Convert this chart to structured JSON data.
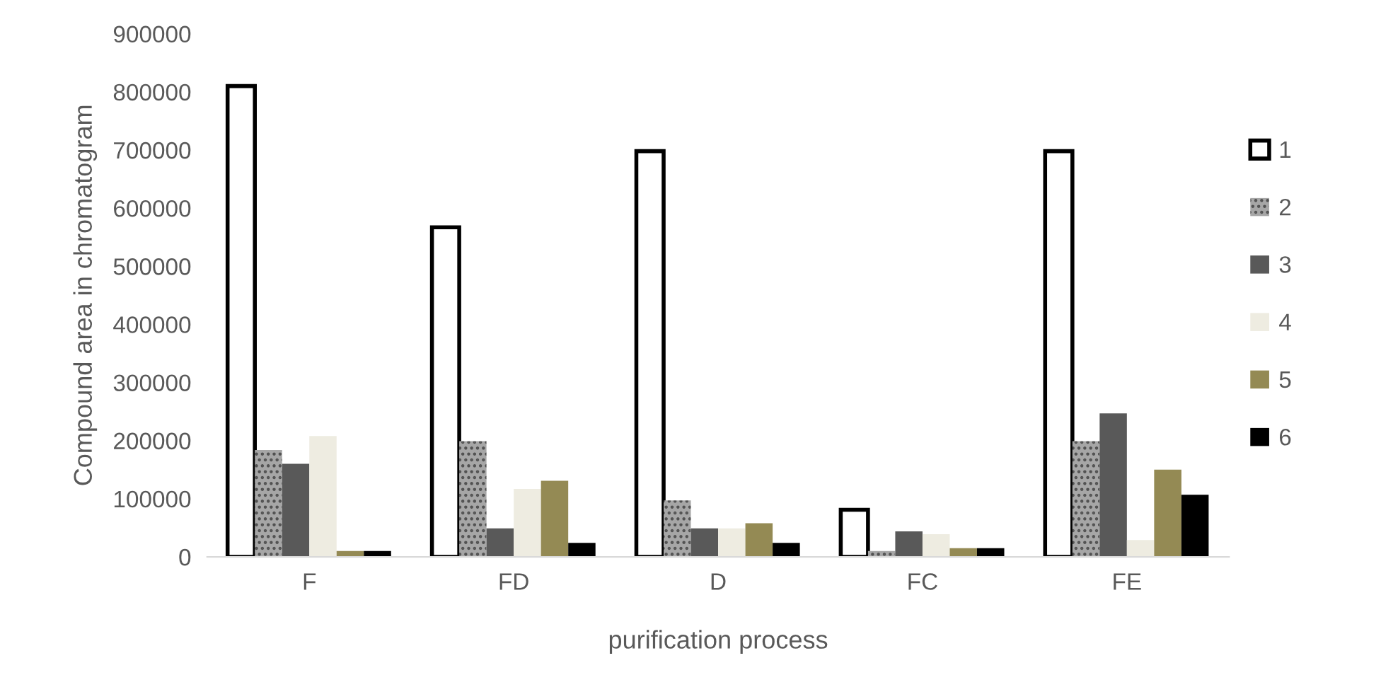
{
  "chart_data": {
    "type": "bar",
    "xlabel": "purification process",
    "ylabel": "Compound area in chromatogram",
    "categories": [
      "F",
      "FD",
      "D",
      "FC",
      "FE"
    ],
    "series": [
      {
        "name": "1",
        "color": "#ffffff",
        "values": [
          810000,
          567000,
          698000,
          81000,
          698000
        ]
      },
      {
        "name": "2",
        "color": "#a6a6a6",
        "values": [
          184000,
          199000,
          97000,
          10000,
          199000
        ]
      },
      {
        "name": "3",
        "color": "#595959",
        "values": [
          160000,
          49000,
          49000,
          44000,
          247000
        ]
      },
      {
        "name": "4",
        "color": "#eeece1",
        "values": [
          208000,
          117000,
          49000,
          39000,
          29000
        ]
      },
      {
        "name": "5",
        "color": "#948a54",
        "values": [
          10000,
          131000,
          58000,
          15000,
          150000
        ]
      },
      {
        "name": "6",
        "color": "#000000",
        "values": [
          10000,
          24000,
          24000,
          15000,
          107000
        ]
      }
    ],
    "ylim": [
      0,
      900000
    ],
    "yticks": [
      0,
      100000,
      200000,
      300000,
      400000,
      500000,
      600000,
      700000,
      800000,
      900000
    ],
    "grid": false,
    "legend": "right"
  }
}
